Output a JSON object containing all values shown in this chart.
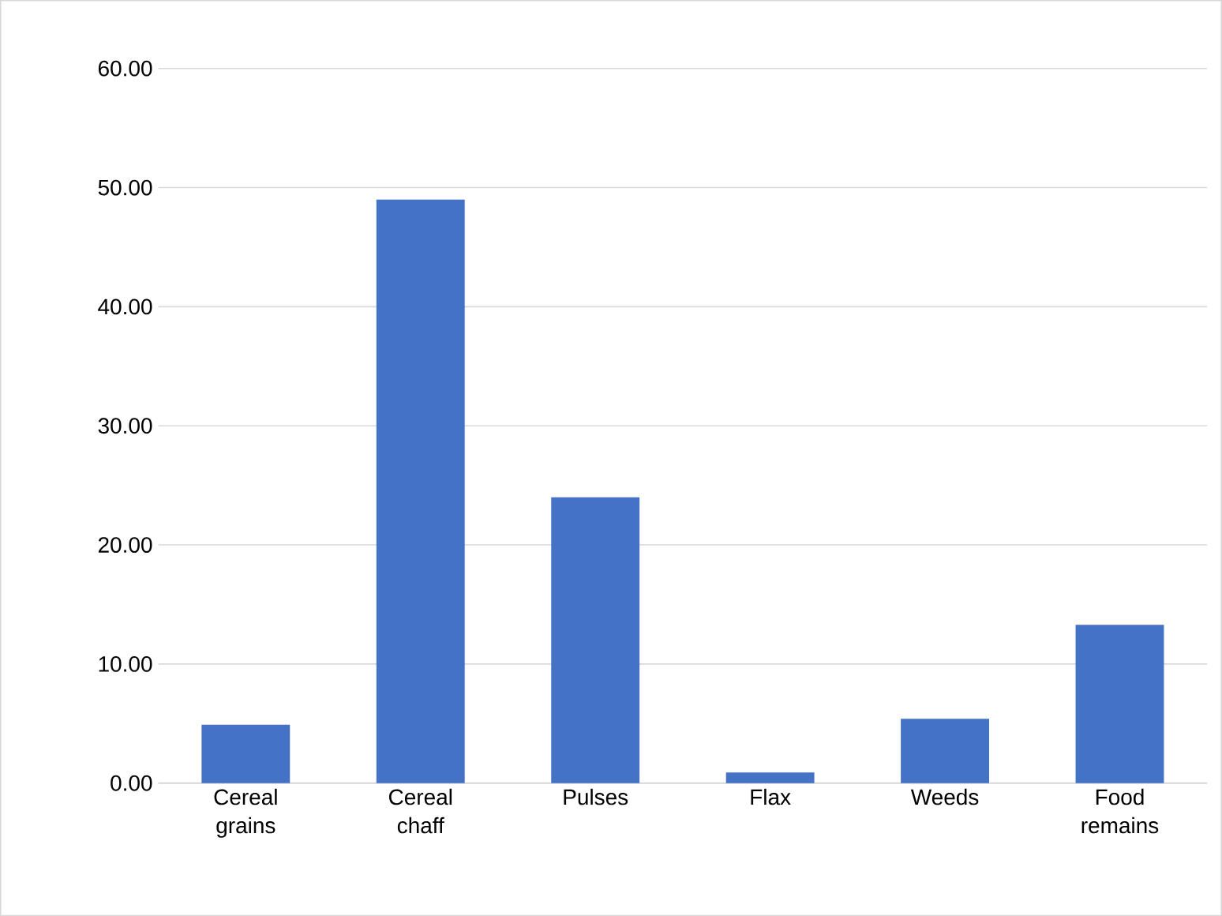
{
  "chart_data": {
    "type": "bar",
    "categories": [
      "Cereal grains",
      "Cereal chaff",
      "Pulses",
      "Flax",
      "Weeds",
      "Food remains"
    ],
    "values": [
      4.9,
      49.0,
      24.0,
      0.9,
      5.4,
      13.3
    ],
    "color": "#4472c4",
    "ylim": [
      0,
      60
    ],
    "yticks": [
      {
        "value": 0,
        "label": "0.00"
      },
      {
        "value": 10,
        "label": "10.00"
      },
      {
        "value": 20,
        "label": "20.00"
      },
      {
        "value": 30,
        "label": "30.00"
      },
      {
        "value": 40,
        "label": "40.00"
      },
      {
        "value": 50,
        "label": "50.00"
      },
      {
        "value": 60,
        "label": "60.00"
      }
    ],
    "grid": "y"
  }
}
